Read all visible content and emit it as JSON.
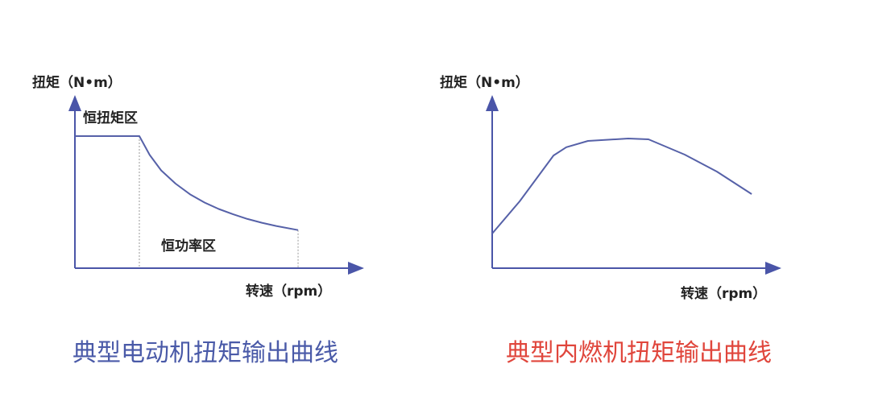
{
  "colors": {
    "axis": "#4a55a8",
    "curve": "#5661a8",
    "left_title": "#4a5aa8",
    "right_title": "#e0463c"
  },
  "chart_data": [
    {
      "type": "line",
      "title": "典型电动机扭矩输出曲线",
      "ylabel": "扭矩（N•m）",
      "xlabel": "转速（rpm）",
      "xlim": [
        0,
        100
      ],
      "ylim": [
        0,
        100
      ],
      "grid": false,
      "annotations": [
        "恒扭矩区",
        "恒功率区"
      ],
      "region_boundaries_x": [
        22.4,
        77.6
      ],
      "series": [
        {
          "x": [
            0,
            22.4,
            26,
            30,
            35,
            40,
            45,
            50,
            55,
            60,
            65,
            70,
            77.6
          ],
          "y": [
            77,
            77,
            66,
            57,
            49.3,
            43.1,
            38.3,
            34.5,
            31.4,
            28.7,
            26.5,
            24.6,
            22.2
          ]
        }
      ]
    },
    {
      "type": "line",
      "title": "典型内燃机扭矩输出曲线",
      "ylabel": "扭矩（N•m）",
      "xlabel": "转速（rpm）",
      "xlim": [
        0,
        100
      ],
      "ylim": [
        0,
        100
      ],
      "grid": false,
      "series": [
        {
          "x": [
            0,
            9.6,
            21.5,
            26,
            33.6,
            47.7,
            54.8,
            67.5,
            78.8,
            91
          ],
          "y": [
            20.2,
            38.9,
            65.7,
            70.5,
            74.2,
            75.6,
            75.1,
            66.2,
            56.3,
            43.2
          ]
        }
      ]
    }
  ]
}
